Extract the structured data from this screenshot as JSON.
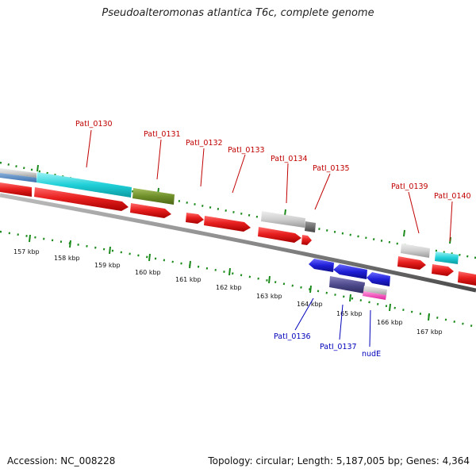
{
  "title": "Pseudoalteromonas atlantica T6c, complete genome",
  "footer": {
    "accession": "Accession: NC_008228",
    "summary": "Topology: circular; Length: 5,187,005 bp; Genes: 4,364"
  },
  "colors": {
    "forward_gene": "#e8201f",
    "reverse_gene": "#1f1fd8",
    "forward_label": "#c00000",
    "reverse_label": "#0000bb",
    "tick": "#1a8a1a",
    "backbone": "#8a8a8a"
  },
  "scale_labels": [
    "157 kbp",
    "158 kbp",
    "159 kbp",
    "160 kbp",
    "161 kbp",
    "162 kbp",
    "163 kbp",
    "164 kbp",
    "165 kbp",
    "166 kbp",
    "167 kbp"
  ],
  "forward_labels": [
    "PatI_0130",
    "PatI_0131",
    "PatI_0132",
    "PatI_0133",
    "PatI_0134",
    "PatI_0135",
    "PatI_0139",
    "PatI_0140"
  ],
  "reverse_labels": [
    "PatI_0136",
    "PatI_0137",
    "nudE"
  ]
}
